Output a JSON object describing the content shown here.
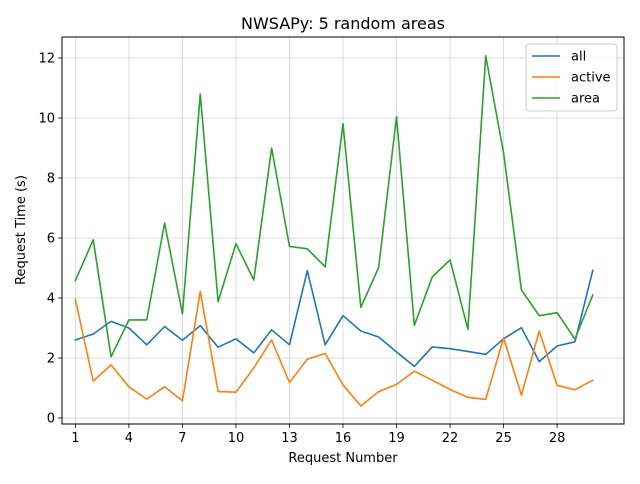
{
  "chart_data": {
    "type": "line",
    "title": "NWSAPy: 5 random areas",
    "xlabel": "Request Number",
    "ylabel": "Request Time (s)",
    "xlim": [
      0.25,
      31.75
    ],
    "ylim": [
      -0.2,
      12.7
    ],
    "xticks": [
      1,
      4,
      7,
      10,
      13,
      16,
      19,
      22,
      25,
      28
    ],
    "yticks": [
      0,
      2,
      4,
      6,
      8,
      10,
      12
    ],
    "grid": true,
    "legend_position": "upper right",
    "x": [
      1,
      2,
      3,
      4,
      5,
      6,
      7,
      8,
      9,
      10,
      11,
      12,
      13,
      14,
      15,
      16,
      17,
      18,
      19,
      20,
      21,
      22,
      23,
      24,
      25,
      26,
      27,
      28,
      29,
      30
    ],
    "series": [
      {
        "name": "all",
        "color": "#1f77b4",
        "values": [
          2.6,
          2.8,
          3.22,
          3.0,
          2.44,
          3.05,
          2.59,
          3.08,
          2.36,
          2.64,
          2.17,
          2.94,
          2.44,
          4.91,
          2.44,
          3.41,
          2.9,
          2.7,
          2.2,
          1.72,
          2.37,
          2.31,
          2.22,
          2.12,
          2.64,
          3.01,
          1.88,
          2.4,
          2.54,
          4.92
        ]
      },
      {
        "name": "active",
        "color": "#ff7f0e",
        "values": [
          3.95,
          1.23,
          1.77,
          1.04,
          0.63,
          1.04,
          0.57,
          4.22,
          0.88,
          0.86,
          1.67,
          2.6,
          1.18,
          1.96,
          2.15,
          1.1,
          0.4,
          0.88,
          1.12,
          1.56,
          1.26,
          0.95,
          0.69,
          0.62,
          2.67,
          0.76,
          2.9,
          1.09,
          0.94,
          1.26
        ]
      },
      {
        "name": "area",
        "color": "#2ca02c",
        "values": [
          4.58,
          5.94,
          2.04,
          3.27,
          3.27,
          6.5,
          3.47,
          10.8,
          3.88,
          5.81,
          4.6,
          9.0,
          5.72,
          5.64,
          5.04,
          9.81,
          3.69,
          5.02,
          10.04,
          3.09,
          4.7,
          5.27,
          2.96,
          12.07,
          8.84,
          4.27,
          3.41,
          3.51,
          2.63,
          4.1
        ]
      }
    ]
  }
}
